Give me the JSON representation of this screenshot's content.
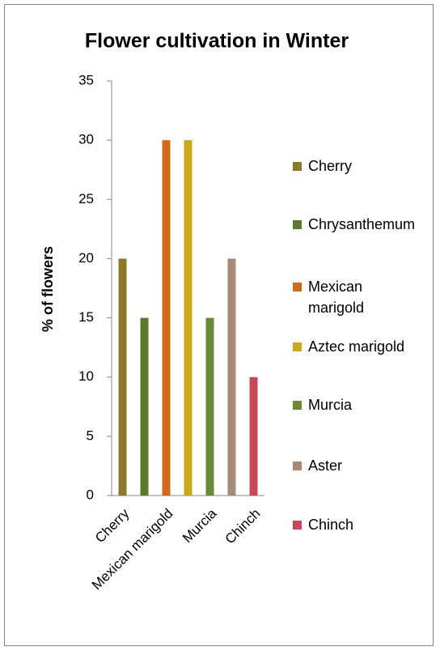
{
  "chart_data": {
    "type": "bar",
    "title": "Flower cultivation in Winter",
    "y_label": "% of flowers",
    "categories": [
      "Cherry",
      null,
      "Mexican marigold",
      null,
      "Murcia",
      null,
      "Chinch"
    ],
    "values": [
      20,
      15,
      30,
      30,
      15,
      20,
      10
    ],
    "colors": [
      "#8a7a2a",
      "#5d7a2c",
      "#d0691c",
      "#c9a81a",
      "#6a8a38",
      "#a88a7a",
      "#c8485a"
    ],
    "legend": [
      "Cherry",
      "Chrysanthemum",
      "Mexican marigold",
      "Aztec marigold",
      "Murcia",
      "Aster",
      "Chinch"
    ],
    "ylim": [
      0,
      35
    ],
    "yticks": [
      0,
      5,
      10,
      15,
      20,
      25,
      30,
      35
    ],
    "grid": false
  }
}
